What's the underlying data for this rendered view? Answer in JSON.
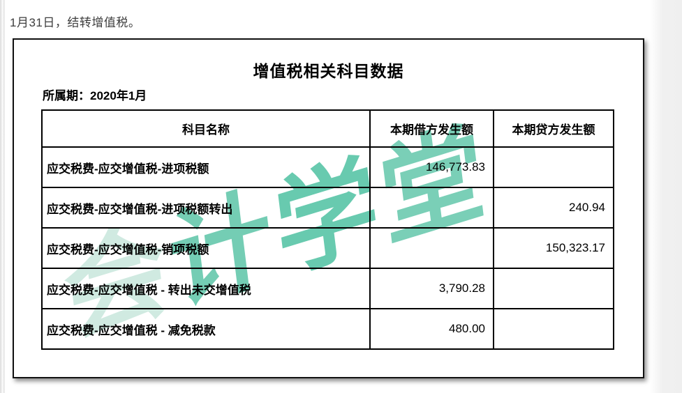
{
  "page": {
    "top_note": "1月31日，结转增值税。"
  },
  "panel": {
    "title": "增值税相关科目数据",
    "period_label": "所属期：2020年1月",
    "watermark": {
      "text": "会计学堂",
      "chars": [
        "会",
        "计",
        "学",
        "堂"
      ],
      "color_light": "#cde9df",
      "color_strong": "#5cc6a9"
    }
  },
  "table": {
    "headers": [
      "科目名称",
      "本期借方发生额",
      "本期贷方发生额"
    ],
    "rows": [
      {
        "account": "应交税费-应交增值税-进项税额",
        "debit": "146,773.83",
        "credit": ""
      },
      {
        "account": "应交税费-应交增值税-进项税额转出",
        "debit": "",
        "credit": "240.94"
      },
      {
        "account": "应交税费-应交增值税-销项税额",
        "debit": "",
        "credit": "150,323.17"
      },
      {
        "account": "应交税费-应交增值税 - 转出未交增值税",
        "debit": "3,790.28",
        "credit": ""
      },
      {
        "account": "应交税费-应交增值税 - 减免税款",
        "debit": "480.00",
        "credit": ""
      }
    ]
  }
}
